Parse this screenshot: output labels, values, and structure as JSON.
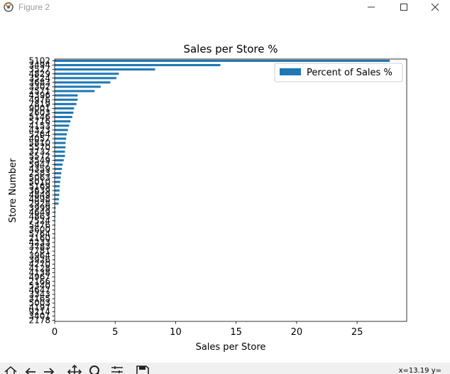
{
  "window": {
    "title": "Figure 2",
    "controls": {
      "minimize": "minimize-icon",
      "maximize": "maximize-icon",
      "close": "close-icon"
    }
  },
  "toolbar": {
    "icons": [
      "home-icon",
      "back-arrow-icon",
      "forward-arrow-icon",
      "pan-icon",
      "zoom-icon",
      "subplots-icon",
      "save-icon"
    ],
    "coord_readout": "x=13.19 y="
  },
  "colors": {
    "bar": "#1f77b4",
    "axis": "#000000",
    "background": "#ffffff"
  },
  "chart_data": {
    "type": "bar",
    "orientation": "horizontal",
    "title": "Sales per Store %",
    "xlabel": "Sales per Store",
    "ylabel": "Store Number",
    "xlim": [
      0,
      29.1
    ],
    "xticks": [
      0,
      5,
      10,
      15,
      20,
      25
    ],
    "grid": false,
    "legend": {
      "placement": "top-right",
      "entries": [
        "Percent of Sales %"
      ]
    },
    "categories": [
      "5102",
      "3494",
      "3527",
      "4829",
      "3524",
      "3683",
      "3302",
      "2571",
      "4396",
      "4976",
      "7819",
      "9001",
      "2603",
      "5146",
      "5716",
      "4153",
      "4323",
      "5264",
      "4057",
      "5810",
      "5570",
      "3732",
      "5572",
      "3549",
      "5947",
      "4359",
      "2583",
      "5063",
      "5010",
      "5169",
      "3639",
      "4849",
      "4898",
      "2928",
      "3999",
      "4649",
      "4863",
      "7524",
      "5476",
      "3600",
      "5764",
      "2160",
      "4233",
      "3783",
      "7781",
      "3964",
      "3926",
      "4270",
      "4128",
      "4138",
      "4967",
      "2166",
      "5340",
      "4647",
      "3343",
      "3165",
      "5003",
      "4197",
      "9214",
      "3401",
      "2178"
    ],
    "values": [
      27.7,
      13.7,
      8.3,
      5.3,
      5.1,
      4.6,
      3.8,
      3.3,
      1.9,
      1.9,
      1.8,
      1.6,
      1.55,
      1.45,
      1.3,
      1.2,
      1.1,
      1.0,
      0.95,
      0.9,
      0.9,
      0.85,
      0.85,
      0.75,
      0.65,
      0.6,
      0.55,
      0.5,
      0.45,
      0.42,
      0.4,
      0.38,
      0.35,
      0.32,
      0.08,
      0.07,
      0.06,
      0.05,
      0.05,
      0.04,
      0.04,
      0.04,
      0.03,
      0.03,
      0.03,
      0.03,
      0.03,
      0.02,
      0.02,
      0.02,
      0.02,
      0.02,
      0.02,
      0.02,
      0.02,
      0.02,
      0.01,
      0.01,
      0.01,
      0.01,
      0.01
    ]
  }
}
